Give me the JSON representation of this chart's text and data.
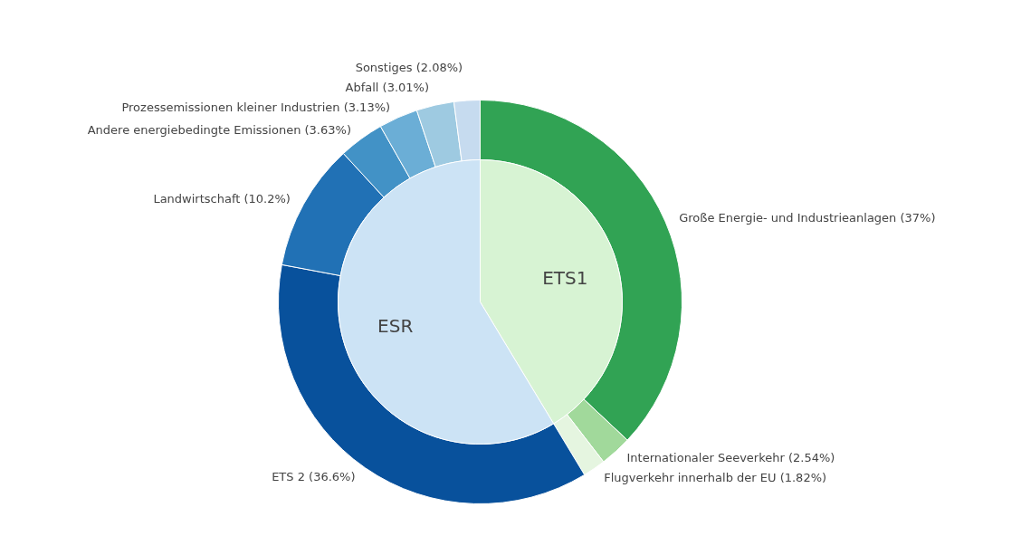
{
  "chart_data": {
    "type": "donut",
    "categories": [
      "Große Energie- und Industrieanlagen (37%)",
      "Internationaler Seeverkehr (2.54%)",
      "Flugverkehr innerhalb der EU (1.82%)",
      "ETS 2 (36.6%)",
      "Landwirtschaft (10.2%)",
      "Andere energiebedingte Emissionen (3.63%)",
      "Prozessemissionen kleiner Industrien (3.13%)",
      "Abfall (3.01%)",
      "Sonstiges (2.08%)"
    ],
    "annotations": [
      "ETS1",
      "ESR"
    ],
    "series": [
      {
        "colors": [
          "#31a354",
          "#a1d99b",
          "#e5f5e0",
          "#08519c",
          "#2171b5",
          "#4292c6",
          "#6baed6",
          "#9ecae1",
          "#c6dbef"
        ],
        "values": [
          37,
          2.54,
          1.82,
          36.6,
          10.2,
          3.63,
          3.13,
          3.01,
          2.08
        ]
      },
      {
        "colors": [
          "#d7f3d3",
          "#cce3f5",
          null,
          null,
          null,
          null,
          null,
          null,
          null
        ],
        "values": [
          41.36,
          58.65,
          null,
          null,
          null,
          null,
          null,
          null,
          null
        ]
      }
    ]
  }
}
